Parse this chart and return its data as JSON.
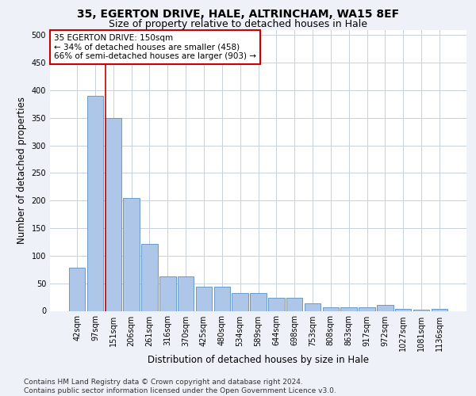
{
  "title1": "35, EGERTON DRIVE, HALE, ALTRINCHAM, WA15 8EF",
  "title2": "Size of property relative to detached houses in Hale",
  "xlabel": "Distribution of detached houses by size in Hale",
  "ylabel": "Number of detached properties",
  "categories": [
    "42sqm",
    "97sqm",
    "151sqm",
    "206sqm",
    "261sqm",
    "316sqm",
    "370sqm",
    "425sqm",
    "480sqm",
    "534sqm",
    "589sqm",
    "644sqm",
    "698sqm",
    "753sqm",
    "808sqm",
    "863sqm",
    "917sqm",
    "972sqm",
    "1027sqm",
    "1081sqm",
    "1136sqm"
  ],
  "values": [
    79,
    390,
    350,
    205,
    121,
    63,
    63,
    44,
    44,
    32,
    32,
    23,
    23,
    13,
    7,
    7,
    6,
    11,
    3,
    2,
    3
  ],
  "bar_color": "#aec6e8",
  "bar_edge_color": "#5a8fc0",
  "vline_x": 2,
  "vline_color": "#cc0000",
  "annotation_text": "35 EGERTON DRIVE: 150sqm\n← 34% of detached houses are smaller (458)\n66% of semi-detached houses are larger (903) →",
  "annotation_box_color": "#ffffff",
  "annotation_box_edge_color": "#cc0000",
  "ylim": [
    0,
    510
  ],
  "yticks": [
    0,
    50,
    100,
    150,
    200,
    250,
    300,
    350,
    400,
    450,
    500
  ],
  "footer": "Contains HM Land Registry data © Crown copyright and database right 2024.\nContains public sector information licensed under the Open Government Licence v3.0.",
  "bg_color": "#eef2f8",
  "plot_bg_color": "#ffffff",
  "grid_color": "#c8d0dc",
  "title1_fontsize": 10,
  "title2_fontsize": 9,
  "xlabel_fontsize": 8.5,
  "ylabel_fontsize": 8.5,
  "tick_fontsize": 7,
  "annotation_fontsize": 7.5,
  "footer_fontsize": 6.5
}
